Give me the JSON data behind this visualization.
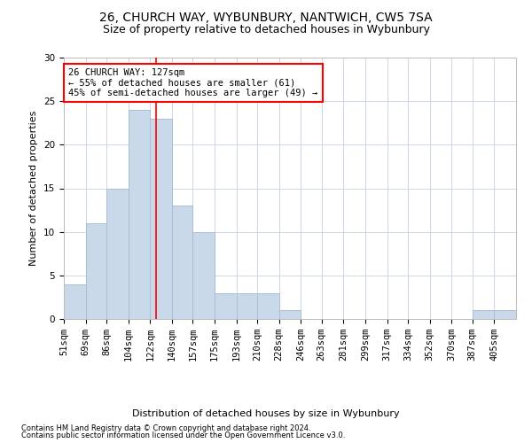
{
  "title1": "26, CHURCH WAY, WYBUNBURY, NANTWICH, CW5 7SA",
  "title2": "Size of property relative to detached houses in Wybunbury",
  "xlabel": "Distribution of detached houses by size in Wybunbury",
  "ylabel": "Number of detached properties",
  "bin_labels": [
    "51sqm",
    "69sqm",
    "86sqm",
    "104sqm",
    "122sqm",
    "140sqm",
    "157sqm",
    "175sqm",
    "193sqm",
    "210sqm",
    "228sqm",
    "246sqm",
    "263sqm",
    "281sqm",
    "299sqm",
    "317sqm",
    "334sqm",
    "352sqm",
    "370sqm",
    "387sqm",
    "405sqm"
  ],
  "bin_edges": [
    51,
    69,
    86,
    104,
    122,
    140,
    157,
    175,
    193,
    210,
    228,
    246,
    263,
    281,
    299,
    317,
    334,
    352,
    370,
    387,
    405,
    423
  ],
  "bar_heights": [
    4,
    11,
    15,
    24,
    23,
    13,
    10,
    3,
    3,
    3,
    1,
    0,
    0,
    0,
    0,
    0,
    0,
    0,
    0,
    1,
    1
  ],
  "bar_color": "#c9d9ea",
  "bar_edgecolor": "#a8bfd4",
  "grid_color": "#ccd8e8",
  "vline_x": 127,
  "vline_color": "red",
  "annotation_text": "26 CHURCH WAY: 127sqm\n← 55% of detached houses are smaller (61)\n45% of semi-detached houses are larger (49) →",
  "annotation_box_color": "white",
  "annotation_box_edgecolor": "red",
  "ylim": [
    0,
    30
  ],
  "yticks": [
    0,
    5,
    10,
    15,
    20,
    25,
    30
  ],
  "footnote1": "Contains HM Land Registry data © Crown copyright and database right 2024.",
  "footnote2": "Contains public sector information licensed under the Open Government Licence v3.0.",
  "title_fontsize": 10,
  "subtitle_fontsize": 9,
  "axis_label_fontsize": 8,
  "tick_fontsize": 7.5,
  "ylabel_fontsize": 8
}
